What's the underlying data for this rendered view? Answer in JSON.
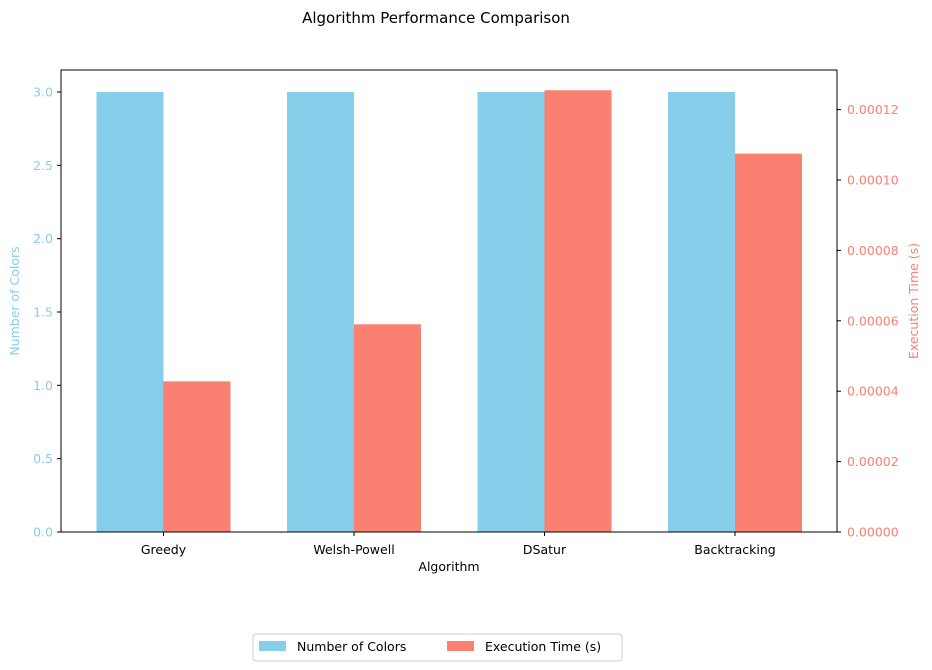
{
  "colors": {
    "colors_series": "#87CEEB",
    "time_series": "#FA8072",
    "axis": "#000000"
  },
  "chart_data": {
    "type": "bar",
    "title": "Algorithm Performance Comparison",
    "xlabel": "Algorithm",
    "ylabel_left": "Number of Colors",
    "ylabel_right": "Execution Time (s)",
    "categories": [
      "Greedy",
      "Welsh-Powell",
      "DSatur",
      "Backtracking"
    ],
    "series": [
      {
        "name": "Number of Colors",
        "axis": "left",
        "values": [
          3,
          3,
          3,
          3
        ]
      },
      {
        "name": "Execution Time (s)",
        "axis": "right",
        "values": [
          4.28e-05,
          5.9e-05,
          0.0001255,
          0.0001075
        ]
      }
    ],
    "ylim_left": [
      0,
      3.15
    ],
    "ylim_right": [
      0,
      0.00013125
    ],
    "left_ticks": [
      "0.0",
      "0.5",
      "1.0",
      "1.5",
      "2.0",
      "2.5",
      "3.0"
    ],
    "right_ticks": [
      "0.00000",
      "0.00002",
      "0.00004",
      "0.00006",
      "0.00008",
      "0.00010",
      "0.00012"
    ],
    "grid": false,
    "legend_position": "bottom-center"
  }
}
